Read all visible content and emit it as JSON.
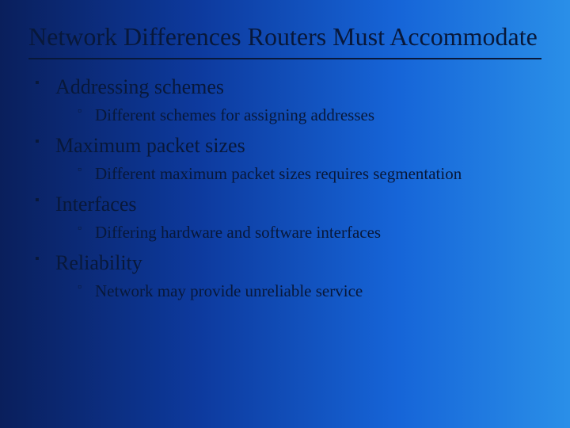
{
  "slide": {
    "title": "Network Differences Routers Must Accommodate",
    "title_fontsize": 32,
    "title_color": "#08183a",
    "underline_color": "#08183a",
    "background_gradient": [
      "#0a1f5c",
      "#0d3a9e",
      "#1665d8",
      "#2a8fe8"
    ],
    "bullets": [
      {
        "text": "Addressing schemes",
        "sub": [
          {
            "text": "Different schemes for assigning addresses"
          }
        ]
      },
      {
        "text": "Maximum packet sizes",
        "sub": [
          {
            "text": "Different maximum packet sizes requires segmentation"
          }
        ]
      },
      {
        "text": "Interfaces",
        "sub": [
          {
            "text": "Differing hardware and software interfaces"
          }
        ]
      },
      {
        "text": "Reliability",
        "sub": [
          {
            "text": "Network may provide unreliable service"
          }
        ]
      }
    ],
    "level1_fontsize": 26,
    "level2_fontsize": 21,
    "text_color": "#08183a",
    "font_family": "Times New Roman"
  }
}
